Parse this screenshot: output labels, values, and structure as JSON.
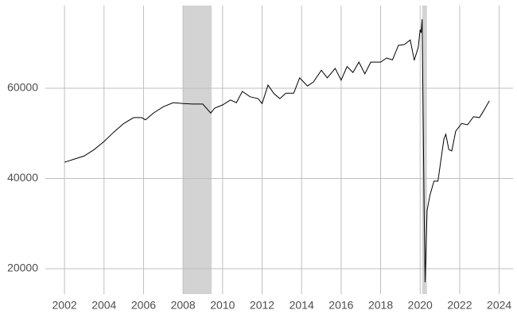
{
  "chart_data": {
    "type": "line",
    "x": [
      2002.0,
      2002.5,
      2003.0,
      2003.5,
      2004.0,
      2004.5,
      2005.0,
      2005.5,
      2005.9,
      2006.1,
      2006.5,
      2007.0,
      2007.5,
      2008.0,
      2008.5,
      2009.0,
      2009.4,
      2009.6,
      2010.0,
      2010.4,
      2010.7,
      2011.0,
      2011.4,
      2011.8,
      2012.0,
      2012.3,
      2012.6,
      2012.9,
      2013.2,
      2013.6,
      2013.9,
      2014.3,
      2014.6,
      2015.0,
      2015.3,
      2015.7,
      2016.0,
      2016.3,
      2016.6,
      2016.9,
      2017.2,
      2017.5,
      2018.0,
      2018.3,
      2018.6,
      2018.9,
      2019.2,
      2019.5,
      2019.7,
      2019.9,
      2020.0,
      2020.05,
      2020.1,
      2020.15,
      2020.2,
      2020.25,
      2020.35,
      2020.5,
      2020.7,
      2020.9,
      2021.2,
      2021.3,
      2021.45,
      2021.6,
      2021.8,
      2022.1,
      2022.4,
      2022.7,
      2023.0,
      2023.2,
      2023.5
    ],
    "values": [
      43600,
      44300,
      45000,
      46400,
      48200,
      50300,
      52200,
      53500,
      53500,
      53000,
      54500,
      55900,
      56800,
      56600,
      56500,
      56500,
      54500,
      55600,
      56300,
      57400,
      56800,
      59300,
      58100,
      57700,
      56600,
      60700,
      58800,
      57700,
      58900,
      58900,
      62300,
      60500,
      61400,
      64000,
      62300,
      64400,
      61800,
      64800,
      63500,
      65800,
      63200,
      65800,
      65800,
      66700,
      66300,
      69500,
      69700,
      70700,
      66200,
      69000,
      73000,
      72300,
      75300,
      54000,
      33700,
      17000,
      32900,
      36400,
      39400,
      39400,
      48700,
      49800,
      46400,
      46100,
      50500,
      52200,
      51900,
      53700,
      53500,
      54900,
      57200
    ],
    "color": "#000000",
    "shaded_regions": [
      [
        2008.0,
        2009.45
      ],
      [
        2020.1,
        2020.34
      ]
    ],
    "shade_color": "#d3d3d3",
    "xlim": [
      2001.03,
      2024.7
    ],
    "xticks": [
      2002,
      2004,
      2006,
      2008,
      2010,
      2012,
      2014,
      2016,
      2018,
      2020,
      2022,
      2024
    ],
    "ylim": [
      14360,
      78330
    ],
    "yticks": [
      20000,
      40000,
      60000
    ],
    "grid": true
  }
}
